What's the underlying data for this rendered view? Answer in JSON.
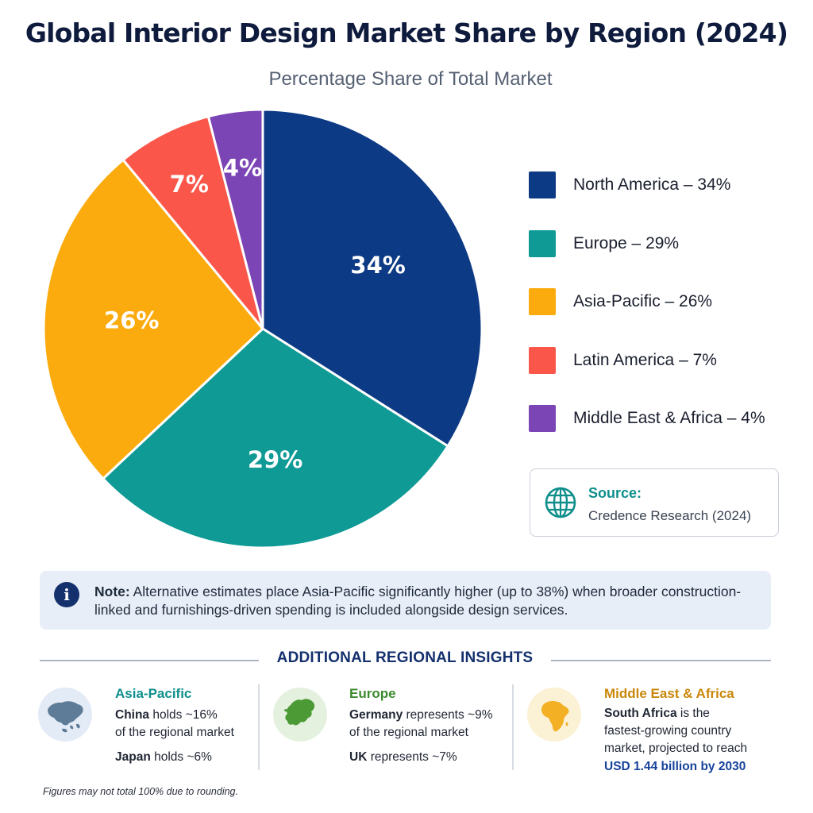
{
  "title": "Global Interior Design Market Share by Region (2024)",
  "subtitle": "Percentage Share of Total Market",
  "chart_data": {
    "type": "pie",
    "title": "Global Interior Design Market Share by Region (2024)",
    "subtitle": "Percentage Share of Total Market",
    "unit": "%",
    "slices": [
      {
        "label": "North America",
        "value": 34,
        "color": "#0d3a84",
        "data_label": "34%",
        "legend": "North America – 34%"
      },
      {
        "label": "Europe",
        "value": 29,
        "color": "#0f9a96",
        "data_label": "29%",
        "legend": "Europe – 29%"
      },
      {
        "label": "Asia-Pacific",
        "value": 26,
        "color": "#fbab0d",
        "data_label": "26%",
        "legend": "Asia-Pacific – 26%"
      },
      {
        "label": "Latin America",
        "value": 7,
        "color": "#fa574a",
        "data_label": "7%",
        "legend": "Latin America – 7%"
      },
      {
        "label": "Middle East & Africa",
        "value": 4,
        "color": "#7b45b5",
        "data_label": "4%",
        "legend": "Middle East & Africa – 4%"
      }
    ],
    "legend_position": "right"
  },
  "source": {
    "title": "Source:",
    "text": "Credence Research (2024)",
    "icon": "globe-icon"
  },
  "note": {
    "icon": "info-icon",
    "label": "Note:",
    "text": " Alternative estimates place Asia-Pacific significantly higher (up to 38%) when broader construction-linked and furnishings-driven spending is included alongside design services."
  },
  "insights": {
    "heading": "ADDITIONAL REGIONAL INSIGHTS",
    "asia_pacific": {
      "title": "Asia-Pacific",
      "title_color": "#0f8f8c",
      "icon": "asia-map-icon",
      "line1_bold": "China",
      "line1_rest": " holds ~16%",
      "line2": "of the regional market",
      "line3_bold": "Japan",
      "line3_rest": " holds ~6%"
    },
    "europe": {
      "title": "Europe",
      "title_color": "#3d8a2f",
      "icon": "europe-map-icon",
      "line1_bold": "Germany",
      "line1_rest": " represents ~9%",
      "line2": "of the regional market",
      "line3_bold": "UK",
      "line3_rest": " represents ~7%"
    },
    "mea": {
      "title": "Middle East & Africa",
      "title_color": "#c9870a",
      "icon": "africa-map-icon",
      "line1_bold": "South Africa",
      "line1_rest": " is the",
      "line2": "fastest-growing country",
      "line3": "market, projected to reach",
      "highlight": "USD 1.44 billion by 2030"
    }
  },
  "footnote": "Figures may not total 100% due to rounding."
}
